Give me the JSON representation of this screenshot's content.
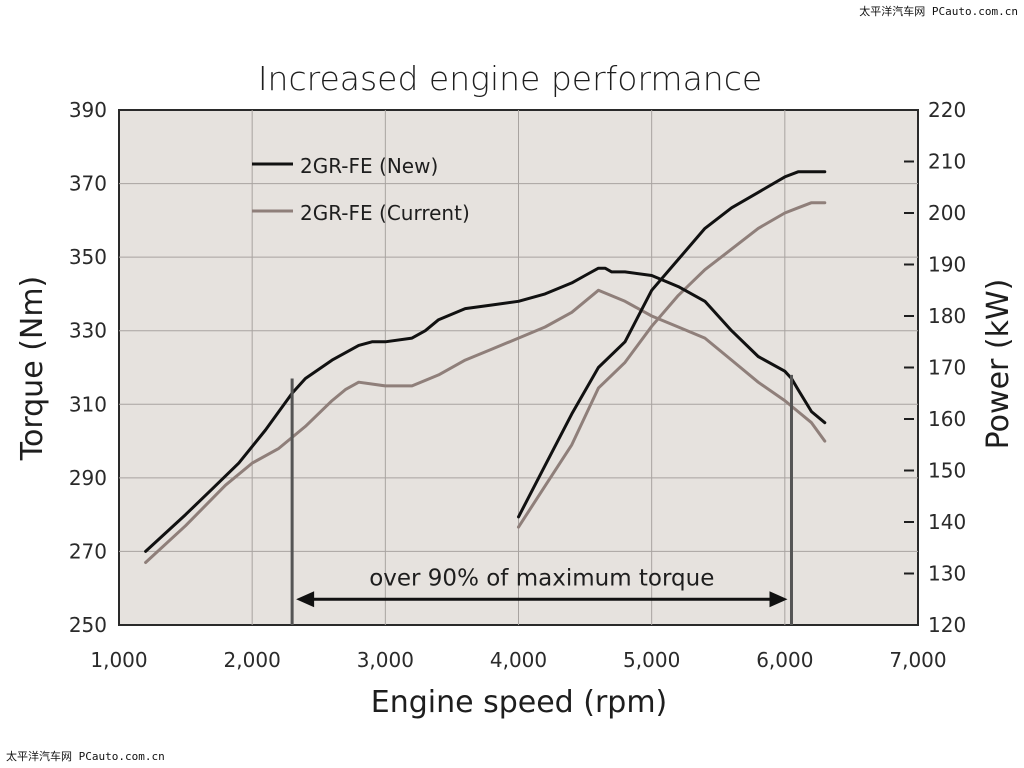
{
  "watermark": {
    "top_right": "太平洋汽车网 PCauto.com.cn",
    "bottom_left": "太平洋汽车网 PCauto.com.cn"
  },
  "chart_data": {
    "type": "line",
    "title": "Increased engine performance",
    "xlabel": "Engine speed (rpm)",
    "ylabel": "Torque (Nm)",
    "y2label": "Power (kW)",
    "xlim": [
      1000,
      7000
    ],
    "ylim": [
      250,
      390
    ],
    "y2lim": [
      120,
      220
    ],
    "x_ticks": [
      1000,
      2000,
      3000,
      4000,
      5000,
      6000,
      7000
    ],
    "x_tick_labels": [
      "1,000",
      "2,000",
      "3,000",
      "4,000",
      "5,000",
      "6,000",
      "7,000"
    ],
    "y_ticks": [
      250,
      270,
      290,
      310,
      330,
      350,
      370,
      390
    ],
    "y_tick_labels": [
      "250",
      "270",
      "290",
      "310",
      "330",
      "350",
      "370",
      "390"
    ],
    "y2_ticks": [
      120,
      130,
      140,
      150,
      160,
      170,
      180,
      190,
      200,
      210,
      220
    ],
    "y2_tick_labels": [
      "120",
      "130",
      "140",
      "150",
      "160",
      "170",
      "180",
      "190",
      "200",
      "210",
      "220"
    ],
    "grid": true,
    "legend": {
      "position": "top-left",
      "entries": [
        {
          "label": "2GR-FE (New)",
          "color": "#111111"
        },
        {
          "label": "2GR-FE (Current)",
          "color": "#8f7f7a"
        }
      ]
    },
    "series": [
      {
        "name": "2GR-FE (New)",
        "quantity": "Torque",
        "axis": "left",
        "color": "#111111",
        "x": [
          1200,
          1500,
          1700,
          1900,
          2100,
          2300,
          2400,
          2600,
          2800,
          2900,
          3000,
          3200,
          3300,
          3400,
          3600,
          3800,
          4000,
          4200,
          4400,
          4500,
          4600,
          4650,
          4700,
          4800,
          5000,
          5200,
          5400,
          5600,
          5800,
          6000,
          6050,
          6100,
          6200,
          6300
        ],
        "values": [
          270,
          280,
          287,
          294,
          303,
          313,
          317,
          322,
          326,
          327,
          327,
          328,
          330,
          333,
          336,
          337,
          338,
          340,
          343,
          345,
          347,
          347,
          346,
          346,
          345,
          342,
          338,
          330,
          323,
          319,
          317,
          314,
          308,
          305
        ]
      },
      {
        "name": "2GR-FE (Current)",
        "quantity": "Torque",
        "axis": "left",
        "color": "#8f7f7a",
        "x": [
          1200,
          1500,
          1800,
          2000,
          2200,
          2400,
          2600,
          2700,
          2800,
          3000,
          3200,
          3400,
          3600,
          3800,
          4000,
          4200,
          4400,
          4600,
          4800,
          5000,
          5200,
          5400,
          5600,
          5800,
          6000,
          6100,
          6200,
          6300
        ],
        "values": [
          267,
          277,
          288,
          294,
          298,
          304,
          311,
          314,
          316,
          315,
          315,
          318,
          322,
          325,
          328,
          331,
          335,
          341,
          338,
          334,
          331,
          328,
          322,
          316,
          311,
          308,
          305,
          300
        ]
      },
      {
        "name": "2GR-FE (New)",
        "quantity": "Power",
        "axis": "right",
        "color": "#111111",
        "x": [
          4000,
          4200,
          4400,
          4600,
          4800,
          5000,
          5200,
          5400,
          5600,
          5800,
          6000,
          6100,
          6200,
          6300
        ],
        "values": [
          141,
          151,
          161,
          170,
          175,
          185,
          191,
          197,
          201,
          204,
          207,
          208,
          208,
          208
        ]
      },
      {
        "name": "2GR-FE (Current)",
        "quantity": "Power",
        "axis": "right",
        "color": "#8f7f7a",
        "x": [
          4000,
          4200,
          4400,
          4600,
          4800,
          5000,
          5200,
          5400,
          5600,
          5800,
          6000,
          6100,
          6200,
          6300
        ],
        "values": [
          139,
          147,
          155,
          166,
          171,
          178,
          184,
          189,
          193,
          197,
          200,
          201,
          202,
          202
        ]
      }
    ],
    "annotations": [
      {
        "text": "over 90% of maximum torque",
        "range_x": [
          2300,
          6050
        ],
        "y": 257,
        "type": "double-arrow"
      },
      {
        "type": "vertical-line",
        "x": 2300,
        "from_y": 250,
        "to_y": 317
      },
      {
        "type": "vertical-line",
        "x": 6050,
        "from_y": 250,
        "to_y": 318
      }
    ]
  }
}
